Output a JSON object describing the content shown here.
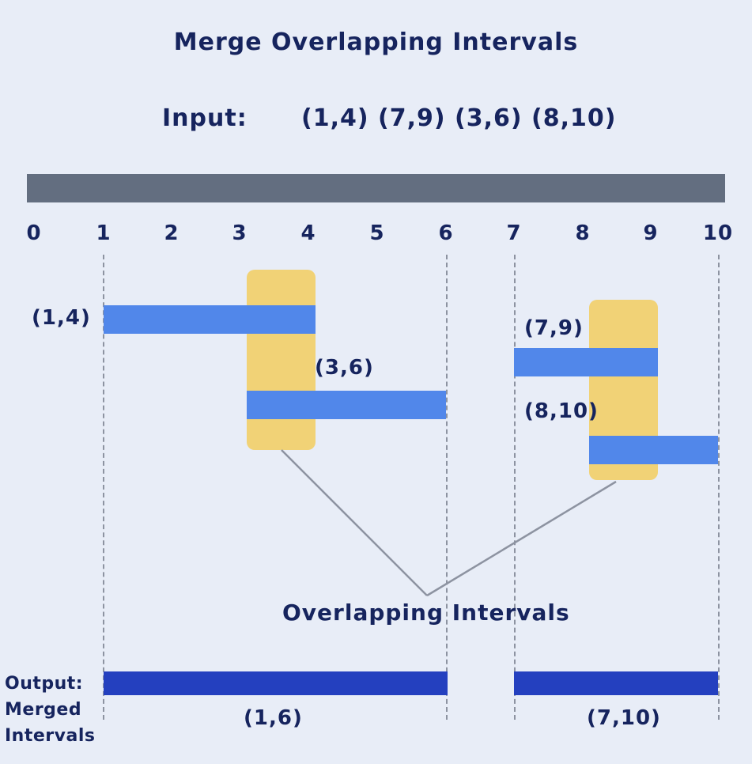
{
  "title": "Merge Overlapping Intervals",
  "input": {
    "label": "Input:",
    "values": "(1,4) (7,9) (3,6) (8,10)"
  },
  "axis": {
    "ticks": [
      "0",
      "1",
      "2",
      "3",
      "4",
      "5",
      "6",
      "7",
      "8",
      "9",
      "10"
    ]
  },
  "intervals": [
    {
      "label": "(1,4)",
      "start": 1,
      "end": 4
    },
    {
      "label": "(3,6)",
      "start": 3,
      "end": 6
    },
    {
      "label": "(7,9)",
      "start": 7,
      "end": 9
    },
    {
      "label": "(8,10)",
      "start": 8,
      "end": 10
    }
  ],
  "overlaps": [
    {
      "start": 3,
      "end": 4
    },
    {
      "start": 8,
      "end": 9
    }
  ],
  "overlap_label": "Overlapping Intervals",
  "output": {
    "label_line1": "Output:",
    "label_line2": "Merged",
    "label_line3": "Intervals",
    "merged": [
      {
        "label": "(1,6)",
        "start": 1,
        "end": 6
      },
      {
        "label": "(7,10)",
        "start": 7,
        "end": 10
      }
    ]
  },
  "colors": {
    "background": "#e8edf7",
    "text": "#16245e",
    "axis": "#636e80",
    "interval": "#5187ea",
    "overlap_highlight": "#f1d276",
    "merged": "#2440bf",
    "guide": "#8d93a1"
  }
}
